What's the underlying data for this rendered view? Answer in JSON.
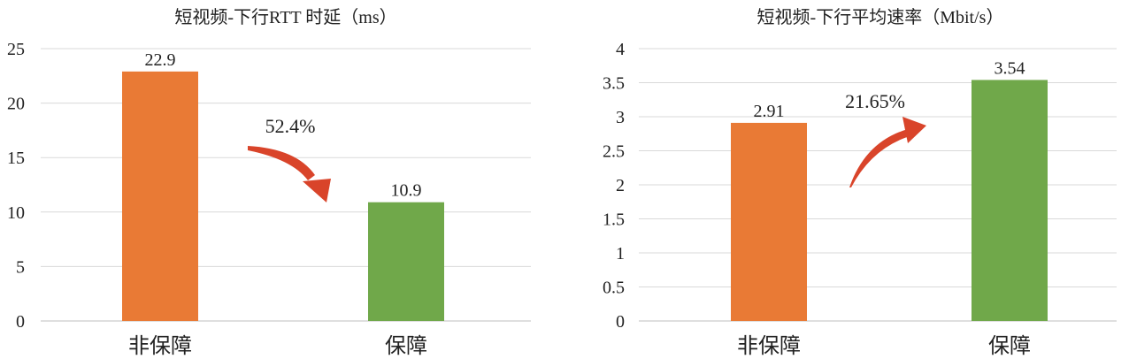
{
  "chart_data": [
    {
      "type": "bar",
      "title": "短视频-下行RTT 时延（ms）",
      "categories": [
        "非保障",
        "保障"
      ],
      "values": [
        22.9,
        10.9
      ],
      "value_labels": [
        "22.9",
        "10.9"
      ],
      "bar_colors": [
        "#E97A35",
        "#70A84A"
      ],
      "ylim": [
        0,
        25
      ],
      "yticks": [
        0,
        5,
        10,
        15,
        20,
        25
      ],
      "ytick_labels": [
        "0",
        "5",
        "10",
        "15",
        "20",
        "25"
      ],
      "grid": true,
      "annotation": {
        "text": "52.4%",
        "direction": "down",
        "color": "#D9442A"
      }
    },
    {
      "type": "bar",
      "title": "短视频-下行平均速率（Mbit/s）",
      "categories": [
        "非保障",
        "保障"
      ],
      "values": [
        2.91,
        3.54
      ],
      "value_labels": [
        "2.91",
        "3.54"
      ],
      "bar_colors": [
        "#E97A35",
        "#70A84A"
      ],
      "ylim": [
        0,
        4
      ],
      "yticks": [
        0,
        0.5,
        1,
        1.5,
        2,
        2.5,
        3,
        3.5,
        4
      ],
      "ytick_labels": [
        "0",
        "0.5",
        "1",
        "1.5",
        "2",
        "2.5",
        "3",
        "3.5",
        "4"
      ],
      "grid": true,
      "annotation": {
        "text": "21.65%",
        "direction": "up",
        "color": "#D9442A"
      }
    }
  ]
}
